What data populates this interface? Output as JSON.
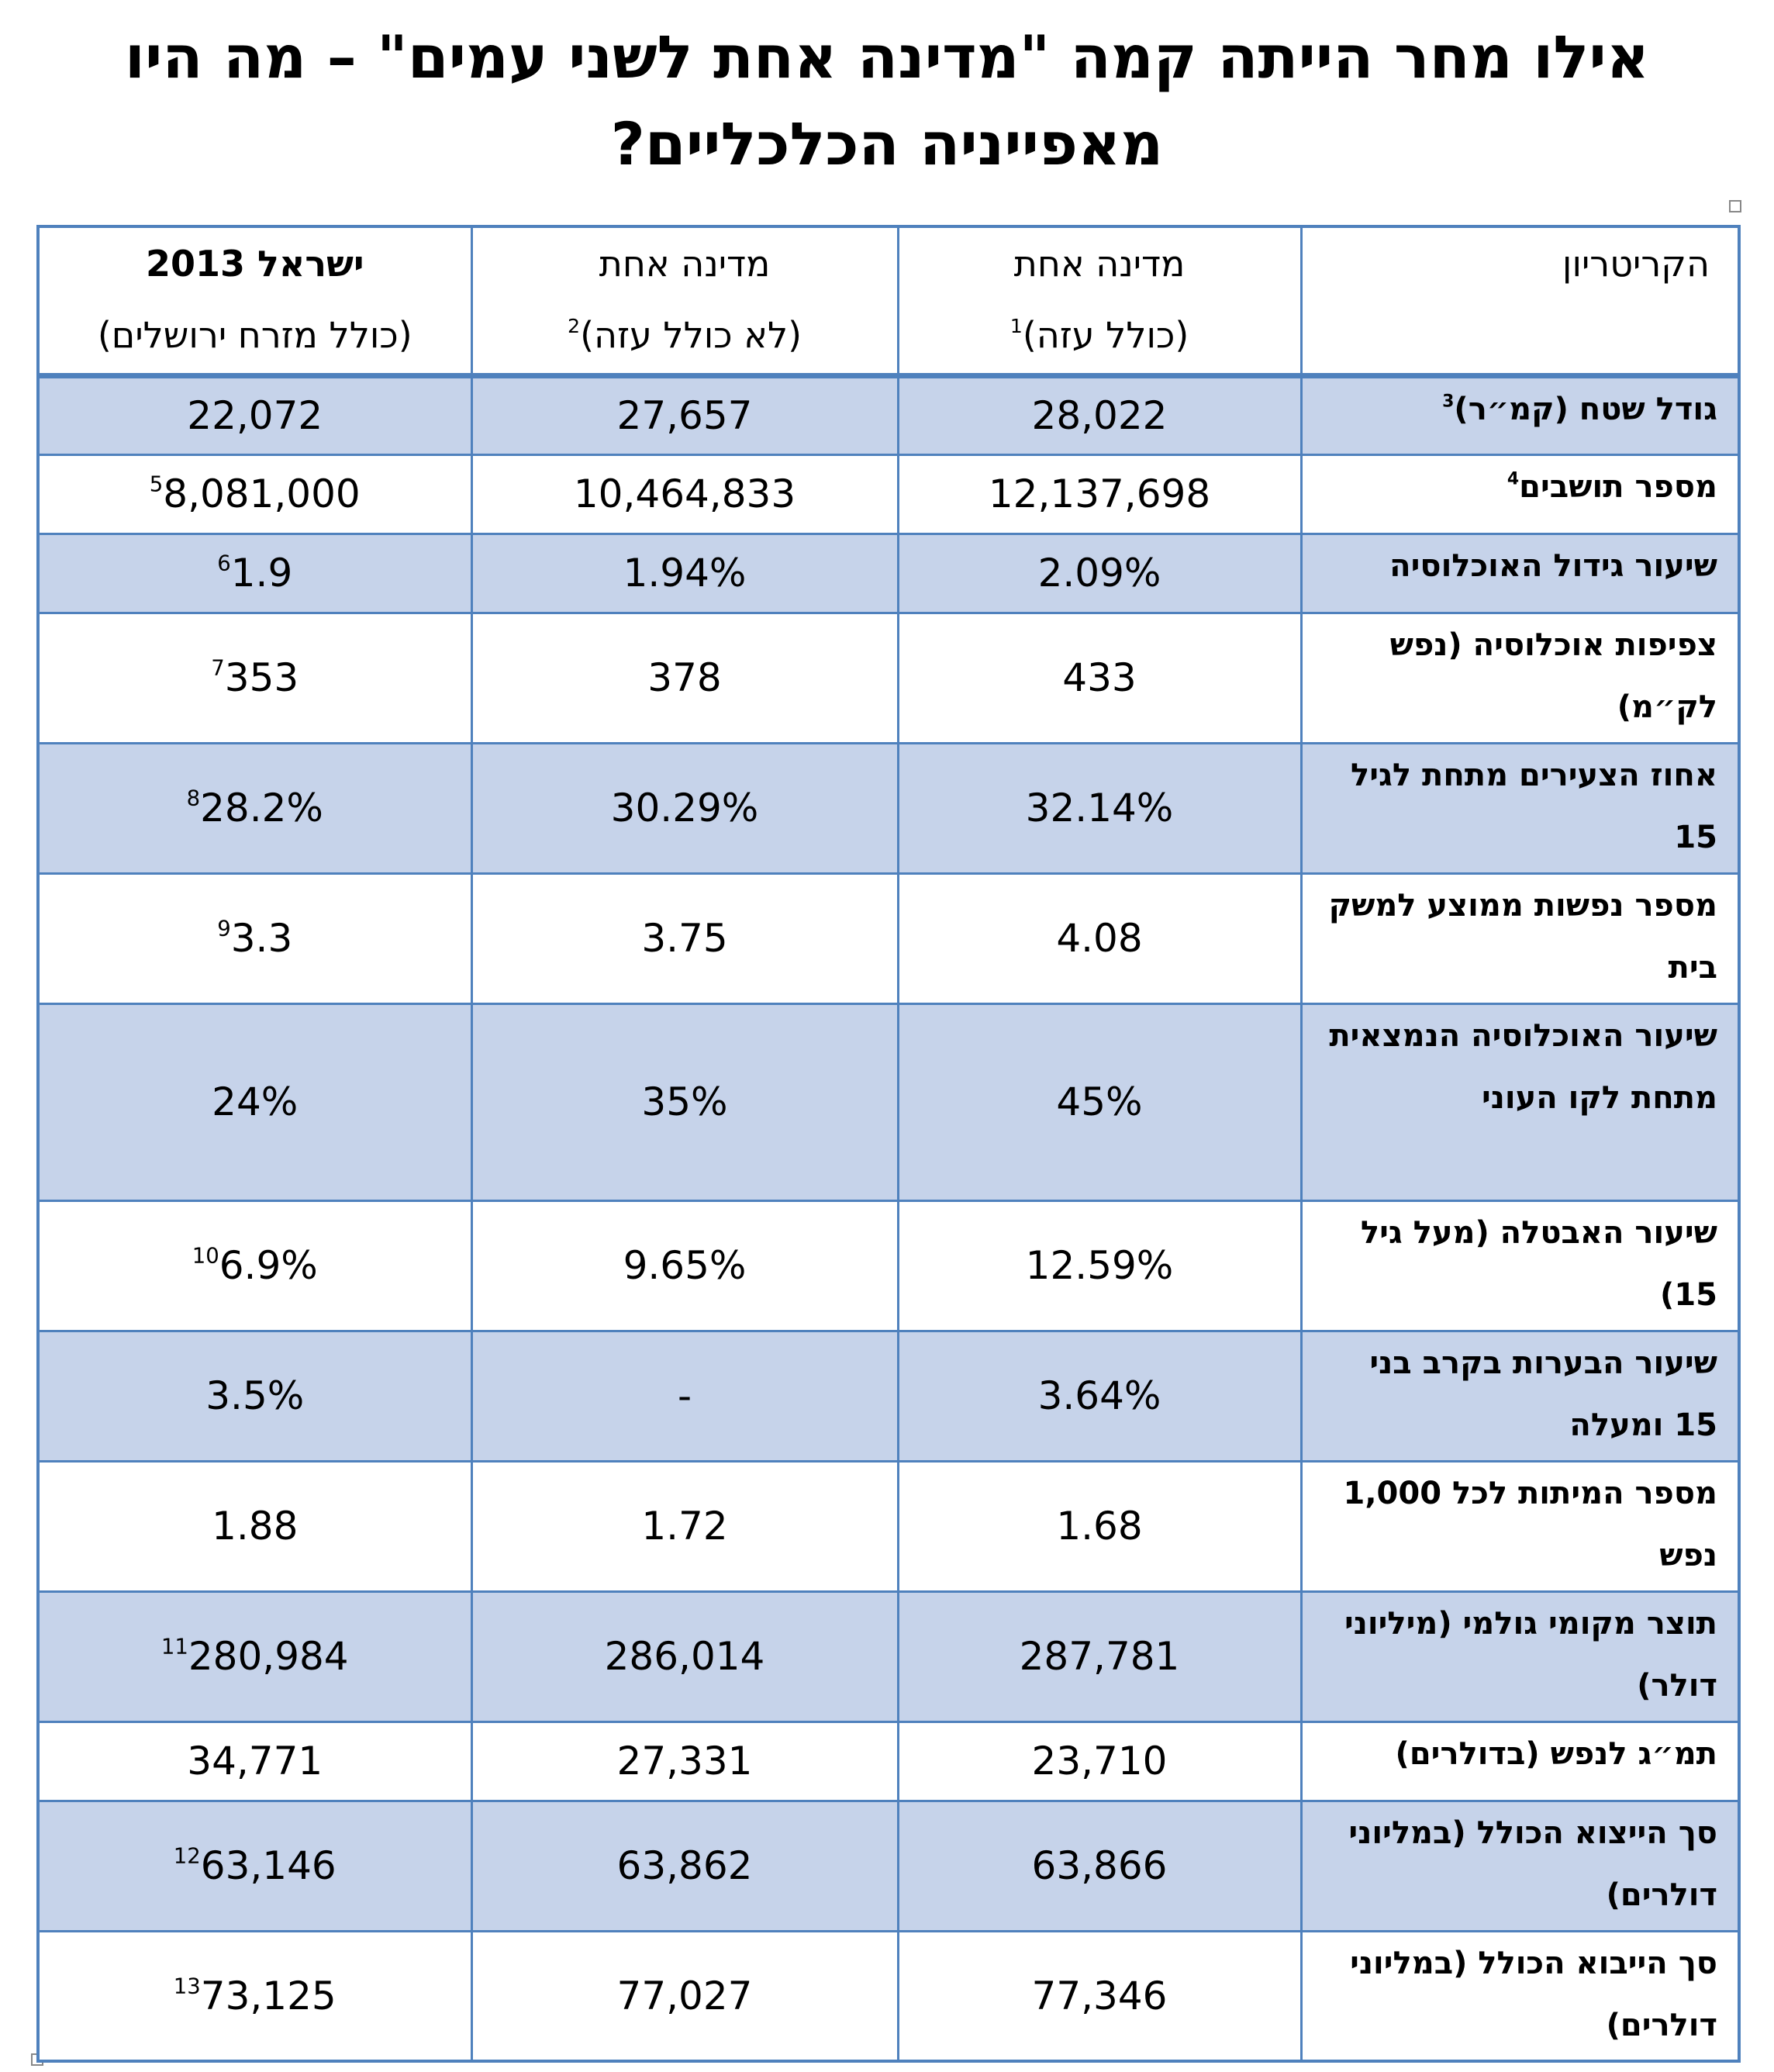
{
  "title": "אילו מחר הייתה קמה \"מדינה אחת לשני עמים\" – מה היו מאפייניה הכלכליים?",
  "headers": {
    "criterion": "הקריטריון",
    "one_state_gaza": {
      "line1": "מדינה אחת",
      "line2": "(כולל עזה)",
      "note": "1"
    },
    "one_state_no_gaza": {
      "line1": "מדינה אחת",
      "line2": "(לא כולל עזה)",
      "note": "2"
    },
    "israel_2013": {
      "line1": "ישראל 2013",
      "line2": "(כולל מזרח ירושלים)"
    }
  },
  "rows": [
    {
      "criterion": "גודל שטח (קמ״ר)",
      "crit_note": "3",
      "one_gaza": "28,022",
      "one_no_gaza": "27,657",
      "israel": "22,072",
      "israel_note": ""
    },
    {
      "criterion": "מספר תושבים",
      "crit_note": "4",
      "one_gaza": "12,137,698",
      "one_no_gaza": "10,464,833",
      "israel": "8,081,000",
      "israel_note": "5"
    },
    {
      "criterion": "שיעור גידול האוכלוסיה",
      "crit_note": "",
      "one_gaza": "2.09%",
      "one_no_gaza": "1.94%",
      "israel": "1.9",
      "israel_note": "6"
    },
    {
      "criterion": "צפיפות אוכלוסיה (נפש לק״מ)",
      "crit_note": "",
      "one_gaza": "433",
      "one_no_gaza": "378",
      "israel": "353",
      "israel_note": "7"
    },
    {
      "criterion": "אחוז הצעירים מתחת לגיל 15",
      "crit_note": "",
      "one_gaza": "32.14%",
      "one_no_gaza": "30.29%",
      "israel": "28.2%",
      "israel_note": "8"
    },
    {
      "criterion": "מספר נפשות ממוצע למשק בית",
      "crit_note": "",
      "one_gaza": "4.08",
      "one_no_gaza": "3.75",
      "israel": "3.3",
      "israel_note": "9"
    },
    {
      "criterion": "שיעור האוכלוסיה הנמצאית מתחת לקו העוני",
      "crit_note": "",
      "one_gaza": "45%",
      "one_no_gaza": "35%",
      "israel": "24%",
      "israel_note": ""
    },
    {
      "criterion": "שיעור האבטלה (מעל גיל 15)",
      "crit_note": "",
      "one_gaza": "12.59%",
      "one_no_gaza": "9.65%",
      "israel": "6.9%",
      "israel_note": "10"
    },
    {
      "criterion": "שיעור הבערות בקרב בני 15 ומעלה",
      "crit_note": "",
      "one_gaza": "3.64%",
      "one_no_gaza": "-",
      "israel": "3.5%",
      "israel_note": ""
    },
    {
      "criterion": "מספר המיתות לכל 1,000 נפש",
      "crit_note": "",
      "one_gaza": "1.68",
      "one_no_gaza": "1.72",
      "israel": "1.88",
      "israel_note": ""
    },
    {
      "criterion": "תוצר מקומי גולמי (מיליוני דולר)",
      "crit_note": "",
      "one_gaza": "287,781",
      "one_no_gaza": "286,014",
      "israel": "280,984",
      "israel_note": "11"
    },
    {
      "criterion": "תמ״ג לנפש (בדולרים)",
      "crit_note": "",
      "one_gaza": "23,710",
      "one_no_gaza": "27,331",
      "israel": "34,771",
      "israel_note": ""
    },
    {
      "criterion": "סך הייצוא הכולל (במליוני דולרים)",
      "crit_note": "",
      "one_gaza": "63,866",
      "one_no_gaza": "63,862",
      "israel": "63,146",
      "israel_note": "12"
    },
    {
      "criterion": "סך הייבוא הכולל (במליוני דולרים)",
      "crit_note": "",
      "one_gaza": "77,346",
      "one_no_gaza": "77,027",
      "israel": "73,125",
      "israel_note": "13"
    }
  ]
}
